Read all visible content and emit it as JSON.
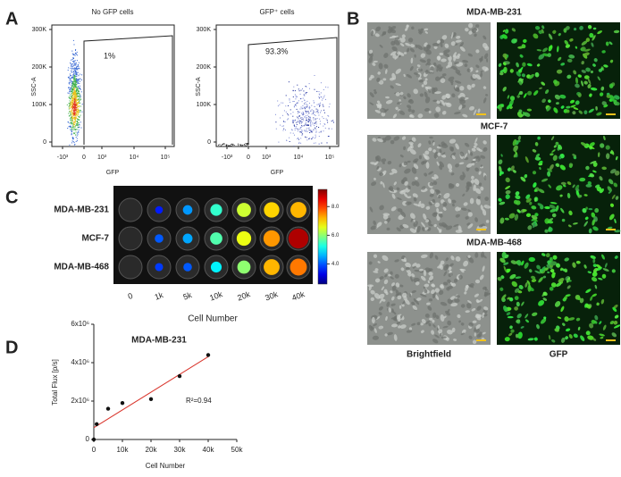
{
  "panels": {
    "A": {
      "label": "A",
      "yticks": [
        "0",
        "100K",
        "200K",
        "300K"
      ],
      "xticks": [
        "-10³",
        "0",
        "10³",
        "10⁴",
        "10⁵"
      ],
      "plots": [
        {
          "title": "No GFP cells",
          "ylabel": "SSC-A",
          "xlabel": "GFP",
          "gate": "1%"
        },
        {
          "title": "GFP⁺ cells",
          "ylabel": "SSC-A",
          "xlabel": "GFP",
          "gate": "93.3%"
        }
      ]
    },
    "B": {
      "label": "B",
      "rows": [
        "MDA-MB-231",
        "MCF-7",
        "MDA-MB-468"
      ],
      "columns": [
        "Brightfield",
        "GFP"
      ]
    },
    "C": {
      "label": "C",
      "rows": [
        "MDA-MB-231",
        "MCF-7",
        "MDA-MB-468"
      ],
      "columns": [
        "0",
        "1k",
        "5k",
        "10k",
        "20k",
        "30k",
        "40k"
      ],
      "xlabel": "Cell Number",
      "signal": [
        [
          2.6,
          3.6,
          4.4,
          5.4,
          6.4,
          7.0,
          7.2
        ],
        [
          2.6,
          4.0,
          4.5,
          5.6,
          6.6,
          7.4,
          8.9
        ],
        [
          2.6,
          3.8,
          4.0,
          5.0,
          6.0,
          7.2,
          7.6
        ]
      ],
      "clim": [
        2.6,
        9.2
      ],
      "cticks": [
        {
          "value": 8,
          "label": "8.0"
        },
        {
          "value": 6,
          "label": "6.0"
        },
        {
          "value": 4,
          "label": "4.0"
        }
      ]
    },
    "D": {
      "label": "D"
    }
  },
  "chart_data": {
    "type": "scatter",
    "title": "MDA-MB-231",
    "xlabel": "Cell Number",
    "ylabel": "Total Flux [p/s]",
    "x": [
      0,
      1000,
      5000,
      10000,
      20000,
      30000,
      40000
    ],
    "values": [
      0,
      800000,
      1600000,
      1900000,
      2100000,
      3300000,
      4400000
    ],
    "color": "#111111",
    "fit_color": "#d9342b",
    "annotation": "R²=0.94",
    "xlim": [
      0,
      50000
    ],
    "xticks": [
      0,
      {
        "value": 10000,
        "label": "10k"
      },
      {
        "value": 20000,
        "label": "20k"
      },
      {
        "value": 30000,
        "label": "30k"
      },
      {
        "value": 40000,
        "label": "40k"
      },
      {
        "value": 50000,
        "label": "50k"
      }
    ],
    "ylim": [
      0,
      6000000
    ],
    "yticks": [
      0,
      {
        "value": 2000000,
        "label": "2x10⁶"
      },
      {
        "value": 4000000,
        "label": "4x10⁶"
      },
      {
        "value": 6000000,
        "label": "6x10⁶"
      }
    ]
  }
}
